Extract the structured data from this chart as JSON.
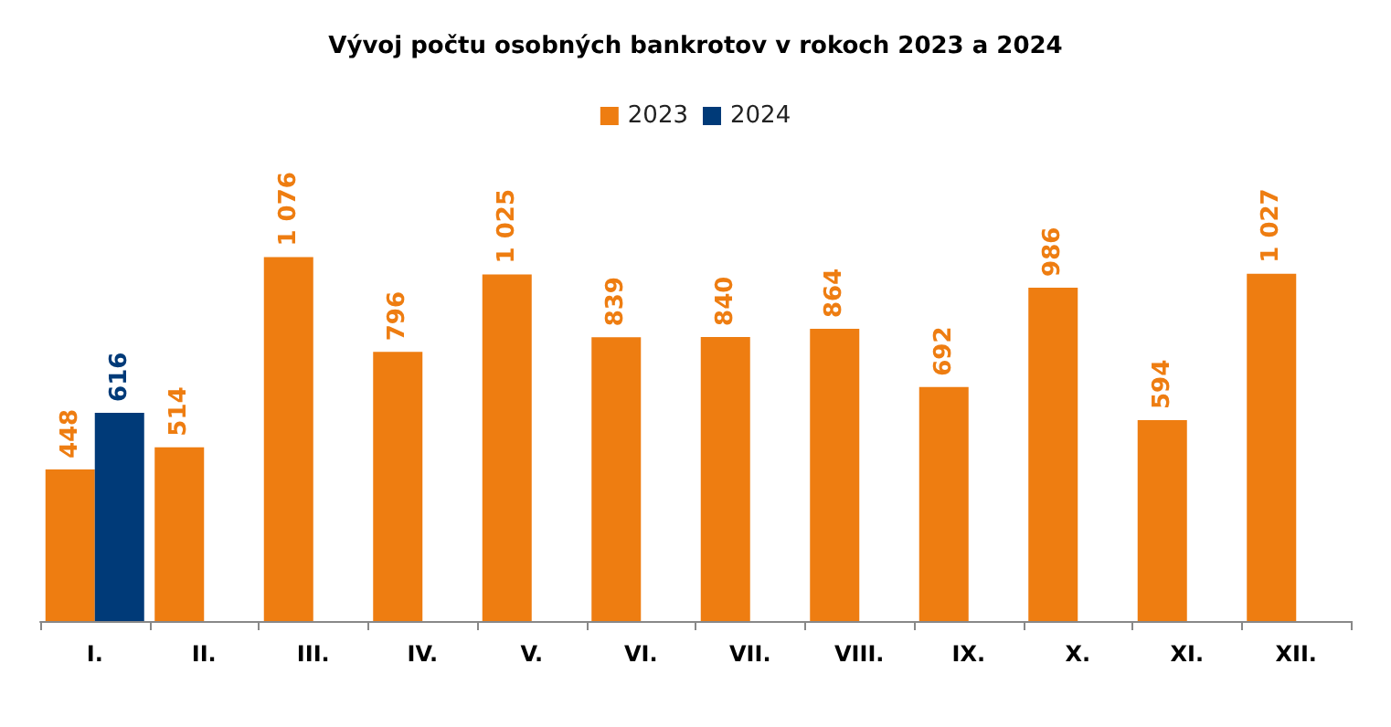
{
  "chart_data": {
    "type": "bar",
    "title": "Vývoj počtu osobných bankrotov v rokoch 2023 a 2024",
    "categories": [
      "I.",
      "II.",
      "III.",
      "IV.",
      "V.",
      "VI.",
      "VII.",
      "VIII.",
      "IX.",
      "X.",
      "XI.",
      "XII."
    ],
    "series": [
      {
        "name": "2023",
        "color": "#ee7d11",
        "values": [
          448,
          514,
          1076,
          796,
          1025,
          839,
          840,
          864,
          692,
          986,
          594,
          1027
        ],
        "value_labels": [
          "448",
          "514",
          "1 076",
          "796",
          "1 025",
          "839",
          "840",
          "864",
          "692",
          "986",
          "594",
          "1 027"
        ]
      },
      {
        "name": "2024",
        "color": "#003a78",
        "values": [
          616,
          null,
          null,
          null,
          null,
          null,
          null,
          null,
          null,
          null,
          null,
          null
        ],
        "value_labels": [
          "616",
          null,
          null,
          null,
          null,
          null,
          null,
          null,
          null,
          null,
          null,
          null
        ]
      }
    ],
    "legend": "top",
    "grid": false,
    "tick_labels": "x"
  }
}
